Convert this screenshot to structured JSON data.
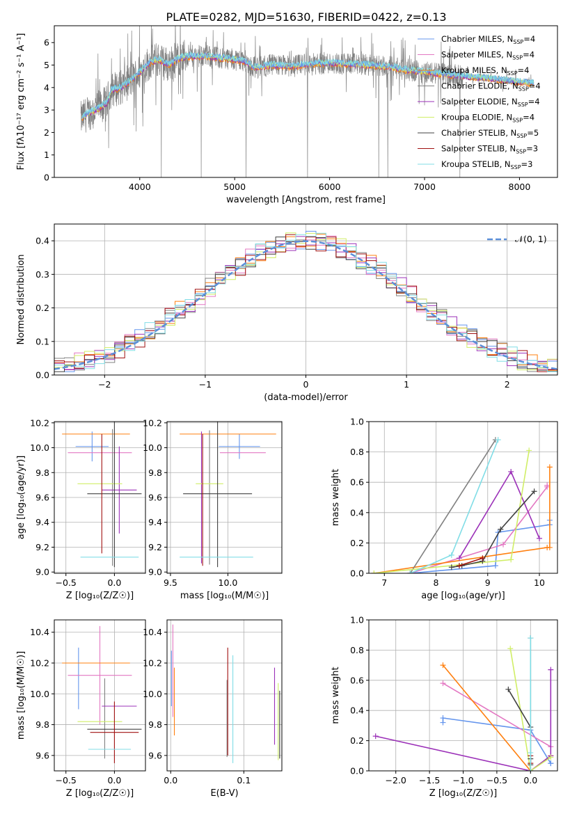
{
  "figure_title": "PLATE=0282, MJD=51630, FIBERID=0422, z=0.13",
  "colors": {
    "Chabrier MILES": "#6495ed",
    "Salpeter MILES": "#e377c2",
    "Kroupa MILES": "#ff7f0e",
    "Chabrier ELODIE": "#808080",
    "Salpeter ELODIE": "#9b30b8",
    "Kroupa ELODIE": "#d0ee66",
    "Chabrier STELIB": "#404040",
    "Salpeter STELIB": "#a01010",
    "Kroupa STELIB": "#80dde6",
    "gauss": "#5b8fd8",
    "grid": "#b0b0b0"
  },
  "chart_data": [
    {
      "id": "spectrum",
      "type": "line",
      "title": "",
      "xlabel": "wavelength [Angstrom, rest frame]",
      "ylabel": "Flux [fλ10⁻¹⁷ erg cm⁻² s⁻¹ A⁻¹]",
      "xlim": [
        3100,
        8400
      ],
      "ylim": [
        0,
        6.75
      ],
      "xticks": [
        4000,
        5000,
        6000,
        7000,
        8000
      ],
      "yticks": [
        0,
        1,
        2,
        3,
        4,
        5,
        6
      ],
      "grid": false,
      "legend_placement": "upper-right",
      "legend": [
        {
          "label": "Chabrier MILES, N",
          "sub": "SSP",
          "suffix": "=4",
          "color_key": "Chabrier MILES"
        },
        {
          "label": "Salpeter MILES, N",
          "sub": "SSP",
          "suffix": "=4",
          "color_key": "Salpeter MILES"
        },
        {
          "label": "Kroupa MILES, N",
          "sub": "SSP",
          "suffix": "=4",
          "color_key": "Kroupa MILES"
        },
        {
          "label": "Chabrier ELODIE, N",
          "sub": "SSP",
          "suffix": "=4",
          "color_key": "Chabrier ELODIE"
        },
        {
          "label": "Salpeter ELODIE, N",
          "sub": "SSP",
          "suffix": "=4",
          "color_key": "Salpeter ELODIE"
        },
        {
          "label": "Kroupa ELODIE, N",
          "sub": "SSP",
          "suffix": "=4",
          "color_key": "Kroupa ELODIE"
        },
        {
          "label": "Chabrier STELIB, N",
          "sub": "SSP",
          "suffix": "=5",
          "color_key": "Chabrier STELIB"
        },
        {
          "label": "Salpeter STELIB, N",
          "sub": "SSP",
          "suffix": "=3",
          "color_key": "Salpeter STELIB"
        },
        {
          "label": "Kroupa STELIB, N",
          "sub": "SSP",
          "suffix": "=3",
          "color_key": "Kroupa STELIB"
        }
      ],
      "continuum": [
        [
          3380,
          2.6
        ],
        [
          3450,
          2.85
        ],
        [
          3550,
          3.05
        ],
        [
          3650,
          3.3
        ],
        [
          3700,
          3.9
        ],
        [
          3800,
          4.0
        ],
        [
          3900,
          4.3
        ],
        [
          3950,
          4.5
        ],
        [
          4000,
          4.7
        ],
        [
          4100,
          5.1
        ],
        [
          4200,
          5.25
        ],
        [
          4300,
          5.0
        ],
        [
          4400,
          5.3
        ],
        [
          4500,
          5.4
        ],
        [
          4700,
          5.4
        ],
        [
          4900,
          5.3
        ],
        [
          5100,
          5.2
        ],
        [
          5200,
          4.9
        ],
        [
          5400,
          5.0
        ],
        [
          5600,
          4.95
        ],
        [
          5800,
          5.05
        ],
        [
          6000,
          5.1
        ],
        [
          6200,
          5.05
        ],
        [
          6400,
          5.0
        ],
        [
          6600,
          4.95
        ],
        [
          6800,
          4.8
        ],
        [
          7000,
          4.7
        ],
        [
          7200,
          4.6
        ],
        [
          7400,
          4.5
        ],
        [
          7600,
          4.45
        ],
        [
          7800,
          4.35
        ],
        [
          8000,
          4.25
        ],
        [
          8150,
          4.2
        ]
      ],
      "data_range": [
        3380,
        8150
      ]
    },
    {
      "id": "residuals",
      "type": "histogram",
      "title": "",
      "xlabel": "(data-model)/error",
      "ylabel": "Normed distribution",
      "xlim": [
        -2.5,
        2.5
      ],
      "ylim": [
        0,
        0.45
      ],
      "xticks": [
        -2,
        -1,
        0,
        1,
        2
      ],
      "yticks": [
        0.0,
        0.1,
        0.2,
        0.3,
        0.4
      ],
      "grid": true,
      "legend_placement": "upper-right",
      "gauss_label": "𝒩(0, 1)",
      "bin_width": 0.1
    },
    {
      "id": "age_vs_Z",
      "type": "errorbar",
      "xlabel": "Z [log₁₀(Z/Z☉)]",
      "ylabel": "age  [log₁₀(age/yr)]",
      "xlim": [
        -0.62,
        0.32
      ],
      "ylim": [
        8.99,
        10.21
      ],
      "xticks": [
        -0.5,
        0.0
      ],
      "yticks": [
        9.0,
        9.2,
        9.4,
        9.6,
        9.8,
        10.0,
        10.2
      ],
      "grid": true,
      "points": [
        {
          "c": "Chabrier MILES",
          "x": -0.23,
          "xerr": 0.17,
          "y": 10.01,
          "yerr": 0.12
        },
        {
          "c": "Salpeter MILES",
          "x": -0.15,
          "xerr": 0.33,
          "y": 9.96,
          "yerr": 0.0
        },
        {
          "c": "Kroupa MILES",
          "x": -0.19,
          "xerr": 0.35,
          "y": 10.11,
          "yerr": 0.0
        },
        {
          "c": "Chabrier ELODIE",
          "x": -0.02,
          "xerr": 0.0,
          "y": 9.6,
          "yerr": 0.55
        },
        {
          "c": "Salpeter ELODIE",
          "x": 0.05,
          "xerr": 0.18,
          "y": 9.66,
          "yerr": 0.35
        },
        {
          "c": "Kroupa ELODIE",
          "x": -0.15,
          "xerr": 0.23,
          "y": 9.71,
          "yerr": 0.0
        },
        {
          "c": "Chabrier STELIB",
          "x": 0.0,
          "xerr": 0.28,
          "y": 9.63,
          "yerr": 0.59
        },
        {
          "c": "Salpeter STELIB",
          "x": -0.13,
          "xerr": 0.0,
          "y": 9.63,
          "yerr": 0.48
        },
        {
          "c": "Kroupa STELIB",
          "x": -0.05,
          "xerr": 0.3,
          "y": 9.12,
          "yerr": 0.0
        }
      ]
    },
    {
      "id": "age_vs_mass",
      "type": "errorbar",
      "xlabel": "mass [log₁₀(M/M☉)]",
      "ylabel": "",
      "xlim": [
        9.47,
        10.47
      ],
      "ylim": [
        8.99,
        10.21
      ],
      "xticks": [
        9.5,
        10.0
      ],
      "yticks": [
        9.0,
        9.2,
        9.4,
        9.6,
        9.8,
        10.0,
        10.2
      ],
      "grid": true,
      "points": [
        {
          "c": "Chabrier MILES",
          "x": 10.1,
          "xerr": 0.18,
          "y": 10.01,
          "yerr": 0.1
        },
        {
          "c": "Salpeter MILES",
          "x": 10.13,
          "xerr": 0.2,
          "y": 9.96,
          "yerr": 0.0
        },
        {
          "c": "Kroupa MILES",
          "x": 10.0,
          "xerr": 0.42,
          "y": 10.11,
          "yerr": 0.0
        },
        {
          "c": "Chabrier ELODIE",
          "x": 9.84,
          "xerr": 0.0,
          "y": 9.6,
          "yerr": 0.54
        },
        {
          "c": "Salpeter ELODIE",
          "x": 9.77,
          "xerr": 0.0,
          "y": 9.6,
          "yerr": 0.53
        },
        {
          "c": "Kroupa ELODIE",
          "x": 9.84,
          "xerr": 0.12,
          "y": 9.71,
          "yerr": 0.0
        },
        {
          "c": "Chabrier STELIB",
          "x": 9.91,
          "xerr": 0.3,
          "y": 9.63,
          "yerr": 0.59
        },
        {
          "c": "Salpeter STELIB",
          "x": 9.78,
          "xerr": 0.0,
          "y": 9.58,
          "yerr": 0.53
        },
        {
          "c": "Kroupa STELIB",
          "x": 9.9,
          "xerr": 0.32,
          "y": 9.12,
          "yerr": 0.0
        }
      ]
    },
    {
      "id": "weight_vs_age",
      "type": "line",
      "xlabel": "age  [log₁₀(age/yr)]",
      "ylabel": "mass weight",
      "xlim": [
        6.7,
        10.35
      ],
      "ylim": [
        0,
        1.0
      ],
      "xticks": [
        7,
        8,
        9,
        10
      ],
      "yticks": [
        0.0,
        0.2,
        0.4,
        0.6,
        0.8,
        1.0
      ],
      "grid": true,
      "series": [
        {
          "c": "Chabrier MILES",
          "x": [
            7.5,
            9.15,
            9.2,
            10.2,
            10.2
          ],
          "y": [
            0.0,
            0.05,
            0.27,
            0.32,
            0.35
          ]
        },
        {
          "c": "Salpeter MILES",
          "x": [
            7.5,
            9.3,
            10.15,
            10.15
          ],
          "y": [
            0.0,
            0.19,
            0.57,
            0.58
          ]
        },
        {
          "c": "Kroupa MILES",
          "x": [
            6.8,
            10.15,
            10.2,
            10.2
          ],
          "y": [
            0.0,
            0.17,
            0.17,
            0.7
          ]
        },
        {
          "c": "Chabrier ELODIE",
          "x": [
            7.5,
            9.15
          ],
          "y": [
            0.0,
            0.88
          ]
        },
        {
          "c": "Salpeter ELODIE",
          "x": [
            8.45,
            9.45,
            10.0
          ],
          "y": [
            0.1,
            0.67,
            0.23
          ]
        },
        {
          "c": "Kroupa ELODIE",
          "x": [
            6.8,
            9.45,
            9.8
          ],
          "y": [
            0.0,
            0.09,
            0.81
          ]
        },
        {
          "c": "Chabrier STELIB",
          "x": [
            8.3,
            8.5,
            8.9,
            9.25,
            9.9
          ],
          "y": [
            0.04,
            0.05,
            0.08,
            0.29,
            0.54
          ]
        },
        {
          "c": "Salpeter STELIB",
          "x": [
            8.45,
            8.9
          ],
          "y": [
            0.05,
            0.1
          ]
        },
        {
          "c": "Kroupa STELIB",
          "x": [
            7.5,
            8.3,
            9.2
          ],
          "y": [
            0.0,
            0.12,
            0.88
          ]
        }
      ]
    },
    {
      "id": "mass_vs_Z",
      "type": "errorbar",
      "xlabel": "Z [log₁₀(Z/Z☉)]",
      "ylabel": "mass [log₁₀(M/M☉)]",
      "xlim": [
        -0.62,
        0.32
      ],
      "ylim": [
        9.5,
        10.48
      ],
      "xticks": [
        -0.5,
        0.0
      ],
      "yticks": [
        9.6,
        9.8,
        10.0,
        10.2,
        10.4
      ],
      "grid": true,
      "points": [
        {
          "c": "Chabrier MILES",
          "x": -0.37,
          "xerr": 0.0,
          "y": 10.1,
          "yerr": 0.2
        },
        {
          "c": "Salpeter MILES",
          "x": -0.15,
          "xerr": 0.33,
          "y": 10.12,
          "yerr": 0.32
        },
        {
          "c": "Kroupa MILES",
          "x": -0.19,
          "xerr": 0.35,
          "y": 10.2,
          "yerr": 0.0
        },
        {
          "c": "Chabrier ELODIE",
          "x": -0.1,
          "xerr": 0.0,
          "y": 9.84,
          "yerr": 0.26
        },
        {
          "c": "Salpeter ELODIE",
          "x": 0.05,
          "xerr": 0.18,
          "y": 9.92,
          "yerr": 0.0
        },
        {
          "c": "Kroupa ELODIE",
          "x": -0.15,
          "xerr": 0.23,
          "y": 9.82,
          "yerr": 0.0
        },
        {
          "c": "Chabrier STELIB",
          "x": 0.0,
          "xerr": 0.28,
          "y": 9.77,
          "yerr": 0.0
        },
        {
          "c": "Salpeter STELIB",
          "x": -0.0,
          "xerr": 0.25,
          "y": 9.75,
          "yerr": 0.2
        },
        {
          "c": "Kroupa STELIB",
          "x": -0.05,
          "xerr": 0.22,
          "y": 9.64,
          "yerr": 0.0
        }
      ]
    },
    {
      "id": "mass_vs_ebv",
      "type": "errorbar",
      "xlabel": "E(B-V)",
      "ylabel": "",
      "xlim": [
        -0.005,
        0.152
      ],
      "ylim": [
        9.5,
        10.48
      ],
      "xticks": [
        0.0,
        0.1
      ],
      "yticks": [
        9.6,
        9.8,
        10.0,
        10.2,
        10.4
      ],
      "grid": true,
      "points": [
        {
          "c": "Chabrier MILES",
          "x": 0.001,
          "xerr": 0.0,
          "y": 10.1,
          "yerr": 0.18
        },
        {
          "c": "Salpeter MILES",
          "x": 0.003,
          "xerr": 0.0,
          "y": 10.15,
          "yerr": 0.3
        },
        {
          "c": "Kroupa MILES",
          "x": 0.005,
          "xerr": 0.0,
          "y": 9.95,
          "yerr": 0.22
        },
        {
          "c": "Chabrier ELODIE",
          "x": 0.077,
          "xerr": 0.0,
          "y": 9.84,
          "yerr": 0.25
        },
        {
          "c": "Salpeter ELODIE",
          "x": 0.142,
          "xerr": 0.0,
          "y": 9.92,
          "yerr": 0.25
        },
        {
          "c": "Kroupa ELODIE",
          "x": 0.147,
          "xerr": 0.0,
          "y": 9.82,
          "yerr": 0.25
        },
        {
          "c": "Chabrier STELIB",
          "x": 0.149,
          "xerr": 0.0,
          "y": 9.8,
          "yerr": 0.22
        },
        {
          "c": "Salpeter STELIB",
          "x": 0.078,
          "xerr": 0.0,
          "y": 9.95,
          "yerr": 0.35
        },
        {
          "c": "Kroupa STELIB",
          "x": 0.085,
          "xerr": 0.0,
          "y": 9.9,
          "yerr": 0.35
        }
      ]
    },
    {
      "id": "weight_vs_Z",
      "type": "line",
      "xlabel": "Z [log₁₀(Z/Z☉)]",
      "ylabel": "mass weight",
      "xlim": [
        -2.4,
        0.4
      ],
      "ylim": [
        0,
        1.0
      ],
      "xticks": [
        -2.0,
        -1.5,
        -1.0,
        -0.5,
        0.0
      ],
      "yticks": [
        0.0,
        0.2,
        0.4,
        0.6,
        0.8,
        1.0
      ],
      "grid": true,
      "series": [
        {
          "c": "Chabrier MILES",
          "x": [
            -1.3,
            -1.3,
            0.0,
            0.3,
            0.3
          ],
          "y": [
            0.32,
            0.35,
            0.27,
            0.05,
            0.05
          ]
        },
        {
          "c": "Salpeter MILES",
          "x": [
            -1.3,
            0.3
          ],
          "y": [
            0.58,
            0.16
          ]
        },
        {
          "c": "Kroupa MILES",
          "x": [
            -1.3,
            0.0,
            0.3
          ],
          "y": [
            0.7,
            0.0,
            0.1
          ]
        },
        {
          "c": "Chabrier ELODIE",
          "x": [
            0.0,
            0.0
          ],
          "y": [
            0.88,
            0.0
          ]
        },
        {
          "c": "Salpeter ELODIE",
          "x": [
            -2.3,
            0.0,
            0.3,
            0.3
          ],
          "y": [
            0.23,
            0.0,
            0.1,
            0.67
          ]
        },
        {
          "c": "Kroupa ELODIE",
          "x": [
            -0.3,
            0.0,
            0.3
          ],
          "y": [
            0.81,
            0.0,
            0.09
          ]
        },
        {
          "c": "Chabrier STELIB",
          "x": [
            -0.33,
            0.0,
            0.0,
            0.0
          ],
          "y": [
            0.54,
            0.29,
            0.08,
            0.04
          ]
        },
        {
          "c": "Salpeter STELIB",
          "x": [
            0.0,
            0.0
          ],
          "y": [
            0.05,
            0.1
          ]
        },
        {
          "c": "Kroupa STELIB",
          "x": [
            0.0,
            0.0,
            0.0
          ],
          "y": [
            0.88,
            0.12,
            0.0
          ]
        }
      ]
    }
  ]
}
